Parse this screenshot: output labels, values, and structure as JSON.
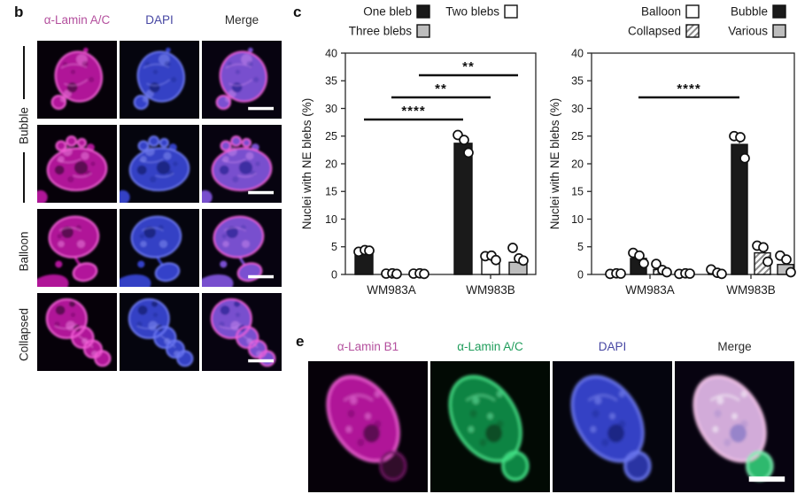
{
  "colors": {
    "labels": {
      "magenta_label": "#b4509e",
      "green_label": "#1f9d5b",
      "dapi_label": "#4747a3",
      "dark_label": "#2b2b2b"
    },
    "bars": {
      "black": "#1a1a1a",
      "white": "#ffffff",
      "gray": "#bdbdbd",
      "hatch_line": "#8a8a8a",
      "axis": "#2a2a2a"
    },
    "channels": {
      "lamin": {
        "bg": "#060109",
        "body": "#b817a0",
        "rim": "#f45fd8",
        "spot": "#4e0845",
        "patch": "#ef86e2"
      },
      "dapi": {
        "bg": "#05050e",
        "body": "#3743cf",
        "rim": "#6d79f2",
        "spot": "#18207a",
        "patch": "#8a93f5"
      },
      "merge": {
        "bg": "#070310",
        "body": "#7e53d8",
        "rim": "#ef5fd8",
        "spot": "#33279a",
        "patch": "#c98af0"
      },
      "lamin_green": {
        "bg": "#020a04",
        "body": "#128a46",
        "rim": "#44e488",
        "spot": "#07431f",
        "patch": "#74f2ae"
      },
      "merge_e": {
        "bg": "#070310",
        "body": "#dcb4e4",
        "rim": "#f8c6ec",
        "spot": "#8d7cc8",
        "patch": "#ffffff",
        "bleb": "#2fbf72",
        "bleb_rim": "#7df2b4"
      },
      "e_overrides": {
        "lamin_bleb": "#33082c",
        "lamin_bleb_rim": "#6d1460",
        "dapi_bleb": "#2a35a8"
      }
    }
  },
  "figure": {
    "panel_b": {
      "label": "b",
      "columns": [
        {
          "text": "α-Lamin A/C",
          "color": "#b4509e"
        },
        {
          "text": "DAPI",
          "color": "#4747a3"
        },
        {
          "text": "Merge",
          "color": "#2b2b2b"
        }
      ],
      "side_labels": [
        {
          "text": "Bubble",
          "spans_rows": [
            0,
            1
          ],
          "bracket": true
        },
        {
          "text": "Balloon",
          "spans_rows": [
            2
          ]
        },
        {
          "text": "Collapsed",
          "spans_rows": [
            3
          ]
        }
      ],
      "rows": [
        {
          "phenotype": "Bubble",
          "shape": "bubble1",
          "scale_bar_in": "merge"
        },
        {
          "phenotype": "Bubble",
          "shape": "bubble2",
          "scale_bar_in": "merge"
        },
        {
          "phenotype": "Balloon",
          "shape": "balloon",
          "scale_bar_in": "merge"
        },
        {
          "phenotype": "Collapsed",
          "shape": "collapsed",
          "scale_bar_in": "merge"
        }
      ]
    },
    "panel_c": {
      "label": "c"
    },
    "panel_e": {
      "label": "e",
      "columns": [
        {
          "text": "α-Lamin B1",
          "color": "#b4509e"
        },
        {
          "text": "α-Lamin A/C",
          "color": "#1f9d5b"
        },
        {
          "text": "DAPI",
          "color": "#4747a3"
        },
        {
          "text": "Merge",
          "color": "#2b2b2b"
        }
      ],
      "scale_bar_in": "merge"
    }
  },
  "chart_data": [
    {
      "type": "bar",
      "title": "",
      "xlabel": "",
      "ylabel": "Nuclei with NE blebs (%)",
      "ylim": [
        0,
        40
      ],
      "ytick_step": 5,
      "grid": false,
      "legend_position": "top",
      "categories": [
        "WM983A",
        "WM983B"
      ],
      "series": [
        {
          "name": "One bleb",
          "style": "black",
          "values": [
            4.3,
            23.7
          ],
          "dots": [
            [
              4.1,
              4.4,
              4.3
            ],
            [
              25.2,
              24.3,
              22.0
            ]
          ],
          "err_up": [
            0,
            1.0
          ]
        },
        {
          "name": "Two blebs",
          "style": "white",
          "values": [
            0.2,
            2.9
          ],
          "dots": [
            [
              0.15,
              0.2,
              0.1
            ],
            [
              3.3,
              3.4,
              2.6
            ]
          ],
          "err_up": [
            0,
            0
          ]
        },
        {
          "name": "Three blebs",
          "style": "gray",
          "values": [
            0.2,
            2.2
          ],
          "dots": [
            [
              0.15,
              0.2,
              0.1
            ],
            [
              4.8,
              2.9,
              2.5
            ]
          ],
          "err_up": [
            0,
            0
          ]
        }
      ],
      "legend_rows": [
        [
          "One bleb",
          "Two blebs"
        ],
        [
          "Three blebs"
        ]
      ],
      "significance": [
        {
          "from_group": 0,
          "to_group": 1,
          "series": 0,
          "y": 28,
          "label": "****"
        },
        {
          "from_group": 0,
          "to_group": 1,
          "series": 1,
          "y": 32,
          "label": "**"
        },
        {
          "from_group": 0,
          "to_group": 1,
          "series": 2,
          "y": 36,
          "label": "**"
        }
      ]
    },
    {
      "type": "bar",
      "title": "",
      "xlabel": "",
      "ylabel": "Nuclei with NE blebs (%)",
      "ylim": [
        0,
        40
      ],
      "ytick_step": 5,
      "grid": false,
      "legend_position": "top",
      "categories": [
        "WM983A",
        "WM983B"
      ],
      "series": [
        {
          "name": "Balloon",
          "style": "white",
          "values": [
            0.15,
            0.4
          ],
          "dots": [
            [
              0.1,
              0.2,
              0.15
            ],
            [
              0.9,
              0.3,
              0.1
            ]
          ],
          "err_up": [
            0,
            0
          ]
        },
        {
          "name": "Bubble",
          "style": "black",
          "values": [
            2.9,
            23.5
          ],
          "dots": [
            [
              3.9,
              3.4,
              2.0
            ],
            [
              25.0,
              24.8,
              21.0
            ]
          ],
          "err_up": [
            0,
            1.2
          ]
        },
        {
          "name": "Collapsed",
          "style": "hatch",
          "values": [
            0.9,
            3.9
          ],
          "dots": [
            [
              1.9,
              0.8,
              0.4
            ],
            [
              5.2,
              4.9,
              2.3
            ]
          ],
          "err_up": [
            0,
            0.7
          ]
        },
        {
          "name": "Various",
          "style": "gray",
          "values": [
            0.15,
            1.8
          ],
          "dots": [
            [
              0.1,
              0.2,
              0.15
            ],
            [
              3.4,
              2.7,
              0.4
            ]
          ],
          "err_up": [
            0,
            0.8
          ]
        }
      ],
      "legend_rows": [
        [
          "Balloon",
          "Bubble"
        ],
        [
          "Collapsed",
          "Various"
        ]
      ],
      "significance": [
        {
          "from_group": 0,
          "to_group": 1,
          "series": 1,
          "y": 32,
          "label": "****"
        }
      ]
    }
  ]
}
